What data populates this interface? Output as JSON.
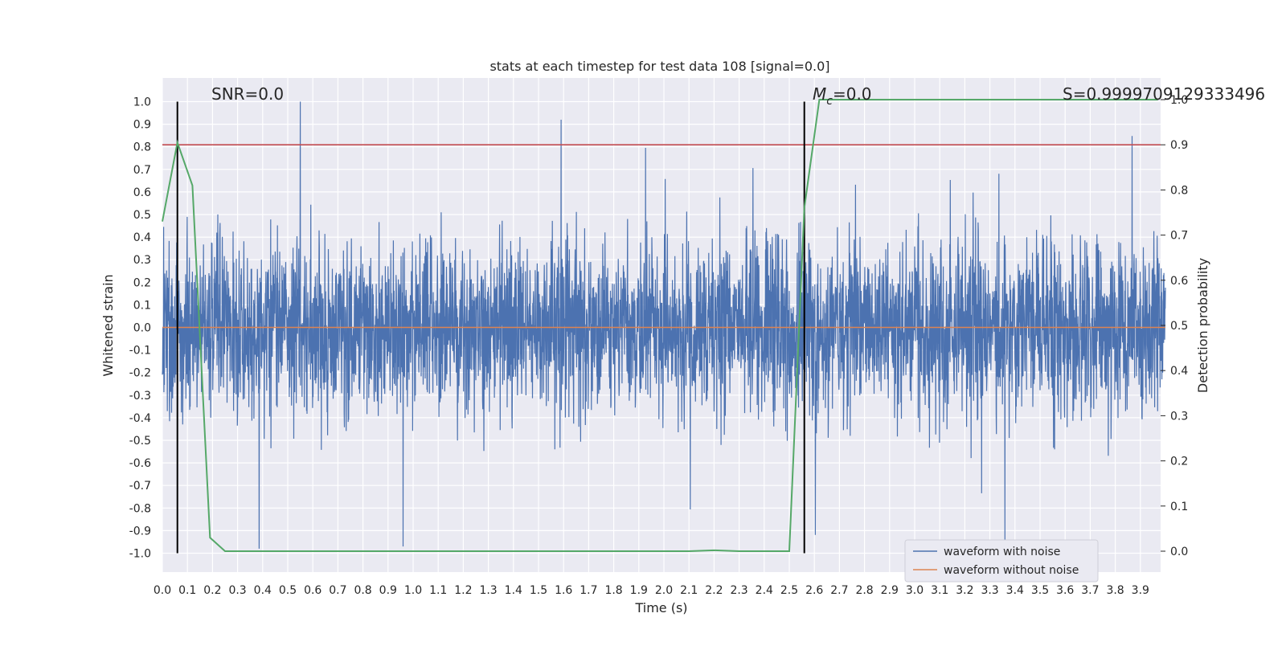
{
  "chart_data": {
    "type": "line",
    "title": "stats at each timestep for test data 108 [signal=0.0]",
    "xlabel": "Time (s)",
    "ylabel": "Whitened strain",
    "y2label": "Detection probability",
    "xlim": [
      0.0,
      4.0
    ],
    "ylim": [
      -1.1,
      1.1
    ],
    "y2lim": [
      -0.05,
      1.0
    ],
    "grid": true,
    "background": "#EAEAF2",
    "x_ticks": [
      "0.0",
      "0.1",
      "0.2",
      "0.3",
      "0.4",
      "0.5",
      "0.6",
      "0.7",
      "0.8",
      "0.9",
      "1.0",
      "1.1",
      "1.2",
      "1.3",
      "1.4",
      "1.5",
      "1.6",
      "1.7",
      "1.8",
      "1.9",
      "2.0",
      "2.1",
      "2.2",
      "2.3",
      "2.4",
      "2.5",
      "2.6",
      "2.7",
      "2.8",
      "2.9",
      "3.0",
      "3.1",
      "3.2",
      "3.3",
      "3.4",
      "3.5",
      "3.6",
      "3.7",
      "3.8",
      "3.9"
    ],
    "y_ticks": [
      "1.0",
      "0.9",
      "0.8",
      "0.7",
      "0.6",
      "0.5",
      "0.4",
      "0.3",
      "0.2",
      "0.1",
      "0.0",
      "-0.1",
      "-0.2",
      "-0.3",
      "-0.4",
      "-0.5",
      "-0.6",
      "-0.7",
      "-0.8",
      "-0.9",
      "-1.0"
    ],
    "y2_ticks": [
      "1.0",
      "0.9",
      "0.8",
      "0.7",
      "0.6",
      "0.5",
      "0.4",
      "0.3",
      "0.2",
      "0.1",
      "0.0"
    ],
    "annotations": {
      "snr": "SNR=0.0",
      "mc_symbol": "M",
      "mc_sub": "c",
      "mc_value": "=0.0",
      "s_text": "S=0.9999709129333496"
    },
    "legend": {
      "placement": "lower-right",
      "entries": [
        {
          "label": "waveform with noise",
          "color": "#4C72B0"
        },
        {
          "label": "waveform without noise",
          "color": "#DD8452"
        }
      ]
    },
    "threshold_line": {
      "axis": "y2",
      "value": 0.9,
      "color": "#C44E52"
    },
    "vertical_markers": [
      0.06,
      2.56
    ],
    "series": [
      {
        "name": "waveform with noise",
        "color": "#4C72B0",
        "axis": "y",
        "summary": "dense whitened noise, typically within ±0.4 with spikes to about ±1.0",
        "peak_x": [
          0.06,
          0.55,
          0.96,
          1.59,
          2.56,
          3.36
        ],
        "peak_y": [
          0.81,
          1.0,
          -0.97,
          0.92,
          -0.75,
          -0.95
        ]
      },
      {
        "name": "waveform without noise",
        "color": "#DD8452",
        "axis": "y",
        "x": [
          0.0,
          4.0
        ],
        "y": [
          0.0,
          0.0
        ]
      },
      {
        "name": "",
        "color": "#55A868",
        "axis": "y2",
        "x": [
          0.0,
          0.06,
          0.12,
          0.19,
          0.25,
          0.5,
          1.0,
          1.5,
          2.0,
          2.1,
          2.2,
          2.3,
          2.4,
          2.5,
          2.56,
          2.62,
          3.0,
          3.5,
          3.97
        ],
        "y": [
          0.73,
          0.905,
          0.81,
          0.03,
          0.0,
          0.0,
          0.0,
          0.0,
          0.0,
          0.0,
          0.002,
          0.0,
          0.0,
          0.0,
          0.76,
          1.0,
          1.0,
          1.0,
          1.0
        ]
      }
    ]
  }
}
